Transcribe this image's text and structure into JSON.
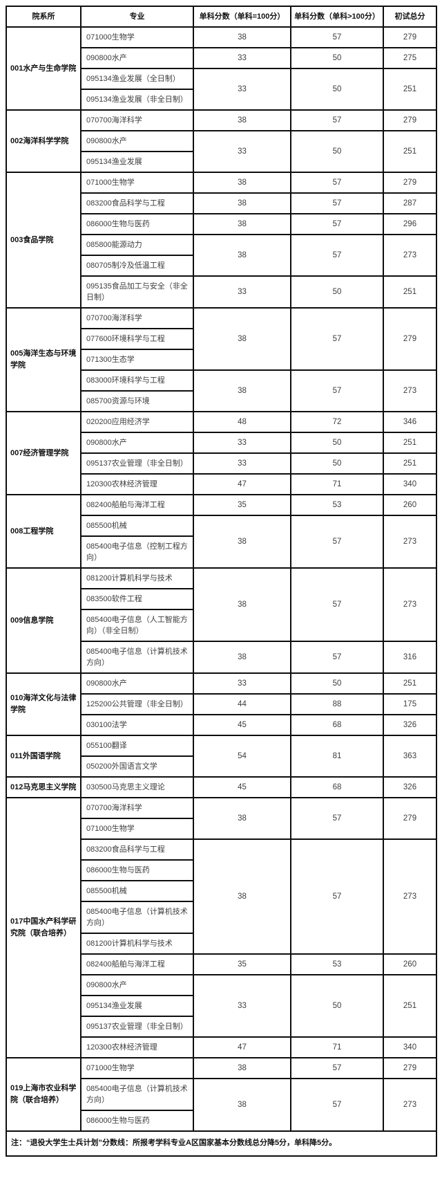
{
  "table": {
    "headers": [
      "院系所",
      "专业",
      "单科分数（单科=100分）",
      "单科分数（单科>100分）",
      "初试总分"
    ],
    "groups": [
      {
        "department": "001水产与生命学院",
        "entries": [
          {
            "majors": [
              "071000生物学"
            ],
            "score_eq100": "38",
            "score_gt100": "57",
            "total": "279"
          },
          {
            "majors": [
              "090800水产"
            ],
            "score_eq100": "33",
            "score_gt100": "50",
            "total": "275"
          },
          {
            "majors": [
              "095134渔业发展（全日制）",
              "095134渔业发展（非全日制）"
            ],
            "score_eq100": "33",
            "score_gt100": "50",
            "total": "251"
          }
        ]
      },
      {
        "department": "002海洋科学学院",
        "entries": [
          {
            "majors": [
              "070700海洋科学"
            ],
            "score_eq100": "38",
            "score_gt100": "57",
            "total": "279"
          },
          {
            "majors": [
              "090800水产",
              "095134渔业发展"
            ],
            "score_eq100": "33",
            "score_gt100": "50",
            "total": "251"
          }
        ]
      },
      {
        "department": "003食品学院",
        "entries": [
          {
            "majors": [
              "071000生物学"
            ],
            "score_eq100": "38",
            "score_gt100": "57",
            "total": "279"
          },
          {
            "majors": [
              "083200食品科学与工程"
            ],
            "score_eq100": "38",
            "score_gt100": "57",
            "total": "287"
          },
          {
            "majors": [
              "086000生物与医药"
            ],
            "score_eq100": "38",
            "score_gt100": "57",
            "total": "296"
          },
          {
            "majors": [
              "085800能源动力",
              "080705制冷及低温工程"
            ],
            "score_eq100": "38",
            "score_gt100": "57",
            "total": "273"
          },
          {
            "majors": [
              "095135食品加工与安全（非全日制）"
            ],
            "score_eq100": "33",
            "score_gt100": "50",
            "total": "251"
          }
        ]
      },
      {
        "department": "005海洋生态与环境学院",
        "entries": [
          {
            "majors": [
              "070700海洋科学",
              "077600环境科学与工程",
              "071300生态学"
            ],
            "score_eq100": "38",
            "score_gt100": "57",
            "total": "279"
          },
          {
            "majors": [
              "083000环境科学与工程",
              "085700资源与环境"
            ],
            "score_eq100": "38",
            "score_gt100": "57",
            "total": "273"
          }
        ]
      },
      {
        "department": "007经济管理学院",
        "entries": [
          {
            "majors": [
              "020200应用经济学"
            ],
            "score_eq100": "48",
            "score_gt100": "72",
            "total": "346"
          },
          {
            "majors": [
              "090800水产"
            ],
            "score_eq100": "33",
            "score_gt100": "50",
            "total": "251"
          },
          {
            "majors": [
              "095137农业管理（非全日制）"
            ],
            "score_eq100": "33",
            "score_gt100": "50",
            "total": "251"
          },
          {
            "majors": [
              "120300农林经济管理"
            ],
            "score_eq100": "47",
            "score_gt100": "71",
            "total": "340"
          }
        ]
      },
      {
        "department": "008工程学院",
        "entries": [
          {
            "majors": [
              "082400船舶与海洋工程"
            ],
            "score_eq100": "35",
            "score_gt100": "53",
            "total": "260"
          },
          {
            "majors": [
              "085500机械",
              "085400电子信息（控制工程方向）"
            ],
            "score_eq100": "38",
            "score_gt100": "57",
            "total": "273"
          }
        ]
      },
      {
        "department": "009信息学院",
        "entries": [
          {
            "majors": [
              "081200计算机科学与技术",
              "083500软件工程",
              "085400电子信息（人工智能方向）（非全日制）"
            ],
            "score_eq100": "38",
            "score_gt100": "57",
            "total": "273"
          },
          {
            "majors": [
              "085400电子信息（计算机技术方向）"
            ],
            "score_eq100": "38",
            "score_gt100": "57",
            "total": "316"
          }
        ]
      },
      {
        "department": "010海洋文化与法律学院",
        "entries": [
          {
            "majors": [
              "090800水产"
            ],
            "score_eq100": "33",
            "score_gt100": "50",
            "total": "251"
          },
          {
            "majors": [
              "125200公共管理（非全日制）"
            ],
            "score_eq100": "44",
            "score_gt100": "88",
            "total": "175"
          },
          {
            "majors": [
              "030100法学"
            ],
            "score_eq100": "45",
            "score_gt100": "68",
            "total": "326"
          }
        ]
      },
      {
        "department": "011外国语学院",
        "entries": [
          {
            "majors": [
              "055100翻译",
              "050200外国语言文学"
            ],
            "score_eq100": "54",
            "score_gt100": "81",
            "total": "363"
          }
        ]
      },
      {
        "department": "012马克思主义学院",
        "entries": [
          {
            "majors": [
              "030500马克思主义理论"
            ],
            "score_eq100": "45",
            "score_gt100": "68",
            "total": "326"
          }
        ]
      },
      {
        "department": "017中国水产科学研究院（联合培养）",
        "entries": [
          {
            "majors": [
              "070700海洋科学",
              "071000生物学"
            ],
            "score_eq100": "38",
            "score_gt100": "57",
            "total": "279"
          },
          {
            "majors": [
              "083200食品科学与工程",
              "086000生物与医药",
              "085500机械",
              "085400电子信息（计算机技术方向）",
              "081200计算机科学与技术"
            ],
            "score_eq100": "38",
            "score_gt100": "57",
            "total": "273"
          },
          {
            "majors": [
              "082400船舶与海洋工程"
            ],
            "score_eq100": "35",
            "score_gt100": "53",
            "total": "260"
          },
          {
            "majors": [
              "090800水产",
              "095134渔业发展",
              "095137农业管理（非全日制）"
            ],
            "score_eq100": "33",
            "score_gt100": "50",
            "total": "251"
          },
          {
            "majors": [
              "120300农林经济管理"
            ],
            "score_eq100": "47",
            "score_gt100": "71",
            "total": "340"
          }
        ]
      },
      {
        "department": "019上海市农业科学院（联合培养）",
        "entries": [
          {
            "majors": [
              "071000生物学"
            ],
            "score_eq100": "38",
            "score_gt100": "57",
            "total": "279"
          },
          {
            "majors": [
              "085400电子信息（计算机技术方向）",
              "086000生物与医药"
            ],
            "score_eq100": "38",
            "score_gt100": "57",
            "total": "273"
          }
        ]
      }
    ],
    "note": "注：“退役大学生士兵计划”分数线：所报考学科专业A区国家基本分数线总分降5分，单科降5分。"
  }
}
